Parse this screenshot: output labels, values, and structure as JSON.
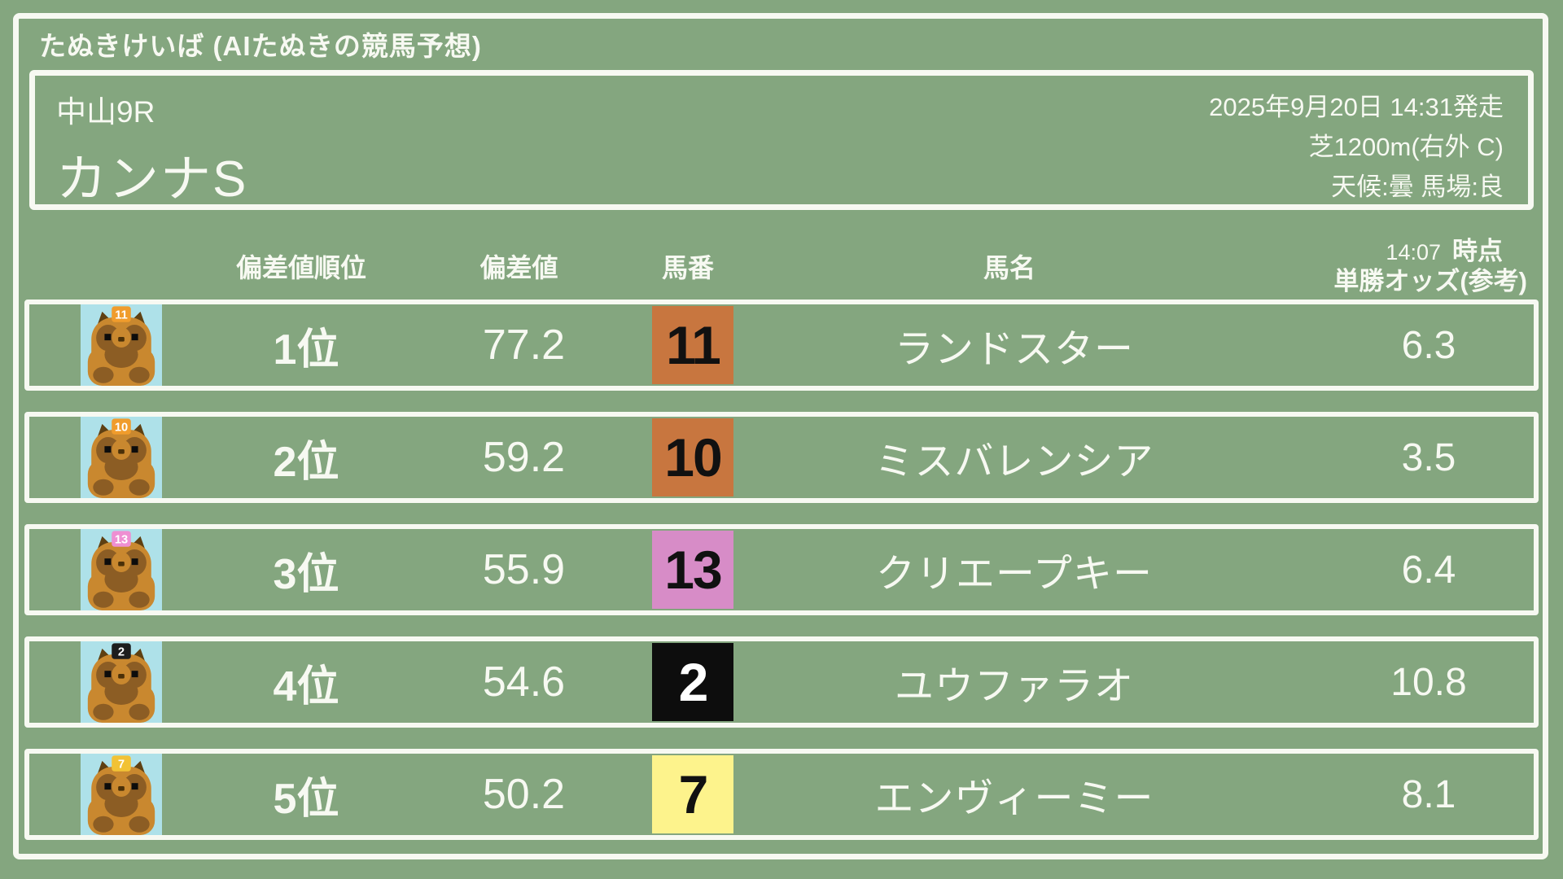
{
  "app": {
    "title": "たぬきけいば (AIたぬきの競馬予想)"
  },
  "race": {
    "track_race": "中山9R",
    "name": "カンナS",
    "datetime": "2025年9月20日 14:31発走",
    "course": "芝1200m(右外 C)",
    "conditions": "天候:曇 馬場:良"
  },
  "table": {
    "headers": {
      "rank": "偏差値順位",
      "score": "偏差値",
      "number": "馬番",
      "horse": "馬名",
      "odds_time": "14:07",
      "odds_time_suffix": "時点",
      "odds_label": "単勝オッズ(参考)"
    },
    "rows": [
      {
        "rank": "1位",
        "score": "77.2",
        "number": "11",
        "number_bg": "#c8763f",
        "number_fg": "#111111",
        "plate_bg": "#f09c2c",
        "horse": "ランドスター",
        "odds": "6.3"
      },
      {
        "rank": "2位",
        "score": "59.2",
        "number": "10",
        "number_bg": "#c8763f",
        "number_fg": "#111111",
        "plate_bg": "#f09c2c",
        "horse": "ミスバレンシア",
        "odds": "3.5"
      },
      {
        "rank": "3位",
        "score": "55.9",
        "number": "13",
        "number_bg": "#d78cc7",
        "number_fg": "#111111",
        "plate_bg": "#ee8fd2",
        "horse": "クリエープキー",
        "odds": "6.4"
      },
      {
        "rank": "4位",
        "score": "54.6",
        "number": "2",
        "number_bg": "#0d0d0d",
        "number_fg": "#ffffff",
        "plate_bg": "#1d1d1d",
        "horse": "ユウファラオ",
        "odds": "10.8"
      },
      {
        "rank": "5位",
        "score": "50.2",
        "number": "7",
        "number_bg": "#fdf38c",
        "number_fg": "#111111",
        "plate_bg": "#f2c235",
        "horse": "エンヴィーミー",
        "odds": "8.1"
      }
    ]
  },
  "colors": {
    "background": "#84a67f",
    "chalk": "#f7f9f2",
    "avatar_bg": "#aee1e9",
    "tanuki_body": "#c9882f",
    "tanuki_dark": "#8c5d24",
    "tanuki_ear": "#5f4012",
    "tanuki_eye": "#0c0c0c",
    "plate_text": "#ffffff"
  }
}
